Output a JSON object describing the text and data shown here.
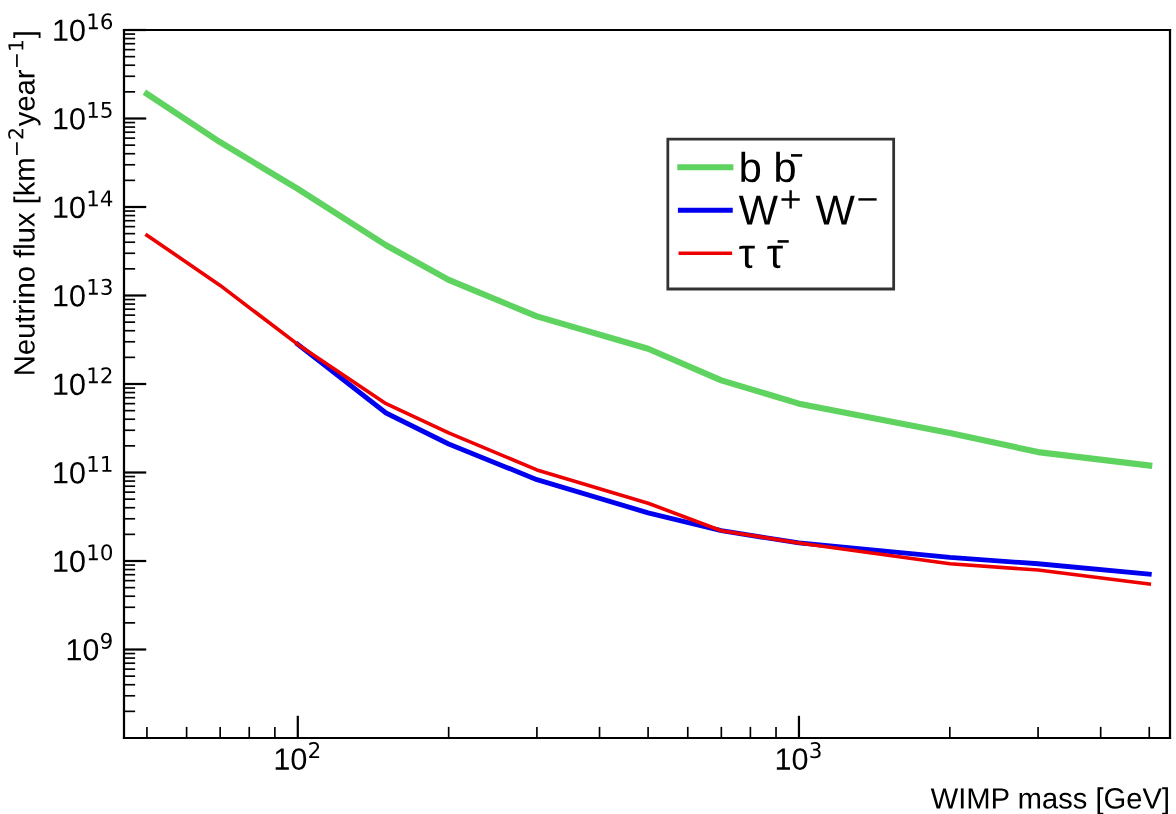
{
  "chart_data": {
    "type": "line",
    "xlabel": "WIMP mass [GeV]",
    "ylabel": "Neutrino flux [km$^{−2}$year$^{−1}$]",
    "log": "xy",
    "grid": false,
    "legend": "right",
    "xlim": [
      45,
      5500
    ],
    "ylim": [
      100000000.0,
      1e+16
    ],
    "xticks": [
      {
        "value": 100,
        "label": "10$^{2}$"
      },
      {
        "value": 1000,
        "label": "10$^{3}$"
      }
    ],
    "yticks": [
      {
        "value": 1000000000.0,
        "label": "10$^{9}$"
      },
      {
        "value": 10000000000.0,
        "label": "10$^{10}$"
      },
      {
        "value": 100000000000.0,
        "label": "10$^{11}$"
      },
      {
        "value": 1000000000000.0,
        "label": "10$^{12}$"
      },
      {
        "value": 10000000000000.0,
        "label": "10$^{13}$"
      },
      {
        "value": 100000000000000.0,
        "label": "10$^{14}$"
      },
      {
        "value": 1000000000000000.0,
        "label": "10$^{15}$"
      },
      {
        "value": 1e+16,
        "label": "10$^{16}$"
      }
    ],
    "series": [
      {
        "name": "b b̄",
        "color": "#5fd35f",
        "x": [
          50,
          70,
          100,
          150,
          200,
          300,
          500,
          700,
          1000,
          2000,
          3000,
          5000
        ],
        "values": [
          1900000000000000.0,
          540000000000000.0,
          160000000000000.0,
          37000000000000.0,
          15000000000000.0,
          5800000000000.0,
          2500000000000.0,
          1100000000000.0,
          600000000000.0,
          280000000000.0,
          170000000000.0,
          120000000000.0
        ]
      },
      {
        "name": "W$^{+}$ W$^{−}$",
        "color": "#0000ee",
        "x": [
          100,
          150,
          200,
          300,
          500,
          700,
          1000,
          2000,
          3000,
          5000
        ],
        "values": [
          2800000000000.0,
          470000000000.0,
          210000000000.0,
          83000000000.0,
          35000000000.0,
          22000000000.0,
          16000000000.0,
          11000000000.0,
          9300000000.0,
          7100000000.0
        ]
      },
      {
        "name": "τ τ̄",
        "color": "#ee0000",
        "x": [
          50,
          70,
          100,
          150,
          200,
          300,
          500,
          700,
          1000,
          2000,
          3000,
          5000
        ],
        "values": [
          48000000000000.0,
          13000000000000.0,
          2800000000000.0,
          600000000000.0,
          280000000000.0,
          107000000000.0,
          45000000000.0,
          22000000000.0,
          16000000000.0,
          9300000000.0,
          7900000000.0,
          5500000000.0
        ]
      }
    ]
  }
}
